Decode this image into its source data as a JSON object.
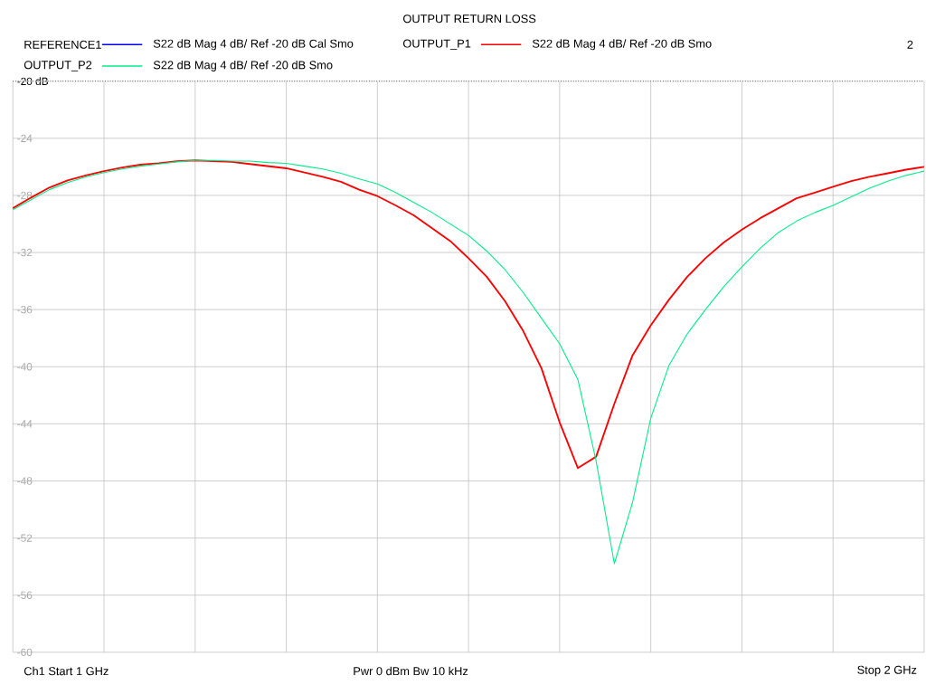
{
  "chart_data": {
    "type": "line",
    "title": "OUTPUT RETURN LOSS",
    "categories": [
      null,
      null,
      null,
      null,
      null,
      null,
      null,
      null,
      null,
      null,
      null,
      null,
      null,
      null,
      null,
      null,
      null,
      null,
      null,
      null,
      null,
      null,
      null,
      null,
      null,
      null,
      null,
      null,
      null,
      null,
      null,
      null,
      null,
      null,
      null,
      null,
      null,
      null,
      null,
      null,
      null,
      null,
      null,
      null,
      null,
      null,
      null,
      null,
      null,
      null,
      null
    ],
    "ylim": [
      -60,
      -20
    ],
    "yticks": [
      {
        "value": -20,
        "label": "-20 dB"
      },
      -24,
      -28,
      -32,
      -36,
      -40,
      -44,
      -48,
      -52,
      -56,
      -60
    ],
    "tick_labels": "y",
    "grid": true,
    "legend": "top",
    "line_style": "solid",
    "marker": "none",
    "ref_lines": [
      {
        "axis": "y",
        "value": -20,
        "line_style": "dotted",
        "color": "#000000"
      }
    ],
    "series": [
      {
        "name": "REFERENCE1",
        "color": "#0000ff",
        "values": [
          null,
          null,
          null,
          null,
          null,
          null,
          null,
          null,
          null,
          null,
          null,
          null,
          null,
          null,
          null,
          null,
          null,
          null,
          null,
          null,
          null,
          null,
          null,
          null,
          null,
          null,
          null,
          null,
          null,
          null,
          null,
          null,
          null,
          null,
          null,
          null,
          null,
          null,
          null,
          null,
          null,
          null,
          null,
          null,
          null,
          null,
          null,
          null,
          null,
          null,
          null
        ]
      },
      {
        "name": "OUTPUT_P1",
        "color": "#ff0000",
        "values": [
          -28.9,
          -28.15,
          -27.45,
          -26.95,
          -26.6,
          -26.3,
          -26.05,
          -25.85,
          -25.75,
          -25.6,
          -25.55,
          -25.6,
          -25.65,
          -25.8,
          -25.95,
          -26.1,
          -26.4,
          -26.7,
          -27.05,
          -27.6,
          -28.05,
          -28.7,
          -29.4,
          -30.3,
          -31.2,
          -32.4,
          -33.7,
          -35.4,
          -37.5,
          -40.1,
          -43.9,
          -47.1,
          -46.3,
          -42.6,
          -39.2,
          -37.1,
          -35.3,
          -33.7,
          -32.4,
          -31.3,
          -30.4,
          -29.6,
          -28.9,
          -28.2,
          -27.8,
          -27.4,
          -27.0,
          -26.7,
          -26.45,
          -26.2,
          -26.0
        ]
      },
      {
        "name": "OUTPUT_P2",
        "color": "#00ee88",
        "values": [
          -29.0,
          -28.3,
          -27.6,
          -27.1,
          -26.7,
          -26.4,
          -26.15,
          -25.95,
          -25.8,
          -25.65,
          -25.55,
          -25.55,
          -25.6,
          -25.6,
          -25.7,
          -25.75,
          -25.95,
          -26.15,
          -26.45,
          -26.85,
          -27.2,
          -27.8,
          -28.5,
          -29.2,
          -30.0,
          -30.8,
          -31.9,
          -33.2,
          -34.8,
          -36.6,
          -38.4,
          -40.9,
          -46.6,
          -53.8,
          -49.5,
          -43.6,
          -39.9,
          -37.7,
          -36.0,
          -34.4,
          -33.0,
          -31.7,
          -30.6,
          -29.8,
          -29.2,
          -28.7,
          -28.1,
          -27.5,
          -27.0,
          -26.6,
          -26.3
        ]
      }
    ],
    "annotations": [
      "S22  dB Mag  4 dB/ Ref -20 dB  Cal Smo",
      "S22  dB Mag  4 dB/ Ref -20 dB  Smo",
      "S22  dB Mag  4 dB/ Ref -20 dB  Smo",
      "2",
      "Ch1  Start  1 GHz",
      "Pwr  0 dBm  Bw  10 kHz",
      "Stop  2 GHz"
    ]
  }
}
